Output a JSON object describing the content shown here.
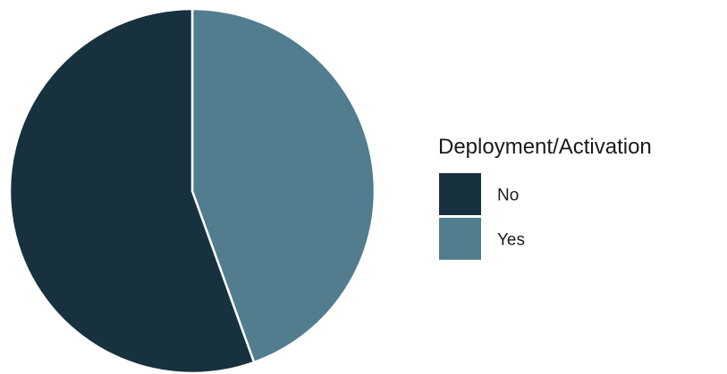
{
  "chart_data": {
    "type": "pie",
    "categories": [
      "No",
      "Yes"
    ],
    "values": [
      55.5,
      44.5
    ],
    "colors": [
      "#17313e",
      "#527d8f"
    ],
    "start_angle_deg": 0,
    "direction": "clockwise",
    "legend": {
      "title": "Deployment/Activation",
      "placement": "right"
    }
  }
}
